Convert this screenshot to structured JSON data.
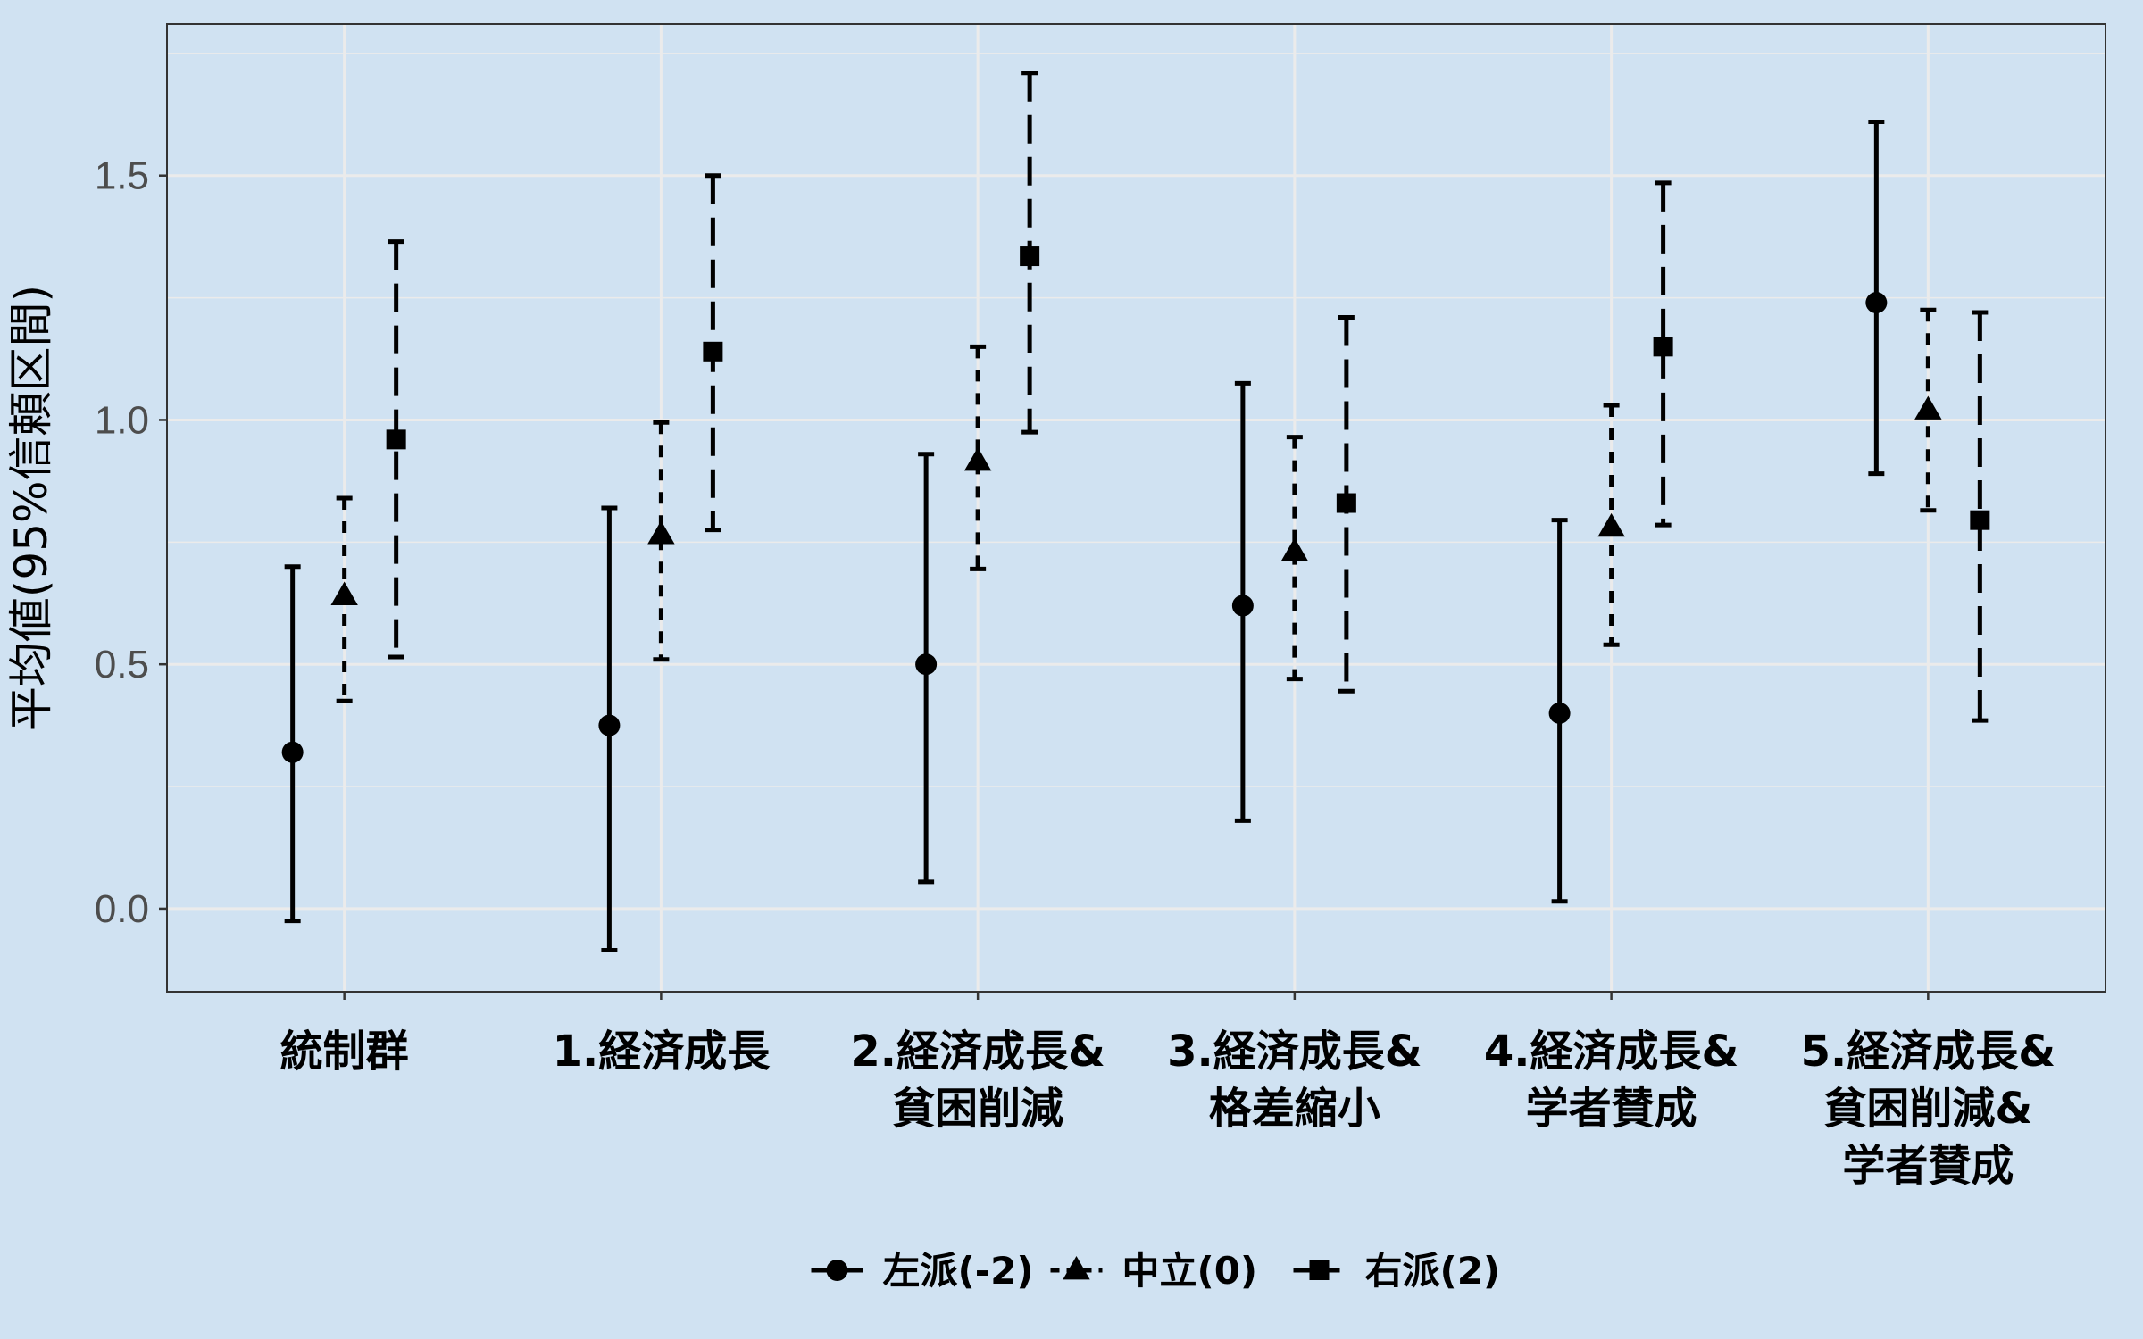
{
  "chart_data": {
    "type": "scatter",
    "subtype": "pointrange-errorbar",
    "title": "",
    "xlabel": "",
    "ylabel": "平均値(95%信頼区間)",
    "ylim": [
      -0.17,
      1.81
    ],
    "yticks": [
      0.0,
      0.5,
      1.0,
      1.5
    ],
    "ytick_labels": [
      "0.0",
      "0.5",
      "1.0",
      "1.5"
    ],
    "grid": true,
    "legend_position": "bottom",
    "categories": [
      {
        "lines": [
          "統制群"
        ]
      },
      {
        "lines": [
          "1.経済成長"
        ]
      },
      {
        "lines": [
          "2.経済成長&",
          "貧困削減"
        ]
      },
      {
        "lines": [
          "3.経済成長&",
          "格差縮小"
        ]
      },
      {
        "lines": [
          "4.経済成長&",
          "学者賛成"
        ]
      },
      {
        "lines": [
          "5.経済成長&",
          "貧困削減&",
          "学者賛成"
        ]
      }
    ],
    "series": [
      {
        "name": "左派(-2)",
        "marker": "circle",
        "line_style": "solid",
        "values": [
          0.32,
          0.375,
          0.5,
          0.62,
          0.4,
          1.24
        ],
        "lower": [
          -0.025,
          -0.085,
          0.055,
          0.18,
          0.015,
          0.89
        ],
        "upper": [
          0.7,
          0.82,
          0.93,
          1.075,
          0.795,
          1.61
        ]
      },
      {
        "name": "中立(0)",
        "marker": "triangle",
        "line_style": "dotted",
        "values": [
          0.64,
          0.765,
          0.915,
          0.73,
          0.78,
          1.02
        ],
        "lower": [
          0.425,
          0.51,
          0.695,
          0.47,
          0.54,
          0.815
        ],
        "upper": [
          0.84,
          0.995,
          1.15,
          0.965,
          1.03,
          1.225
        ]
      },
      {
        "name": "右派(2)",
        "marker": "square",
        "line_style": "dashed",
        "values": [
          0.96,
          1.14,
          1.335,
          0.83,
          1.15,
          0.795
        ],
        "lower": [
          0.515,
          0.775,
          0.975,
          0.445,
          0.785,
          0.385
        ],
        "upper": [
          1.365,
          1.5,
          1.71,
          1.21,
          1.485,
          1.22
        ]
      }
    ],
    "colors": {
      "background": "#d0e2f2",
      "grid": "#ebebeb",
      "axis_text": "#4d4d4d",
      "marks": "#000000"
    }
  }
}
